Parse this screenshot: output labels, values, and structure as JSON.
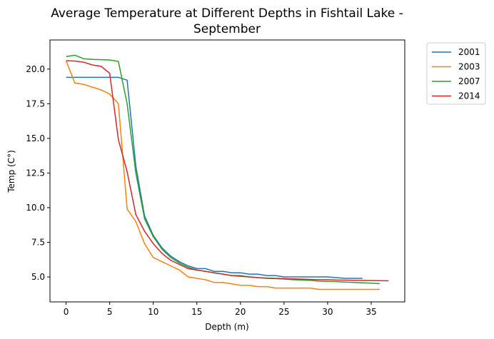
{
  "chart_data": {
    "type": "line",
    "title_line1": "Average Temperature at Different Depths in Fishtail Lake -",
    "title_line2": "September",
    "xlabel": "Depth (m)",
    "ylabel": "Temp (C°)",
    "xlim": [
      -1.85,
      38.85
    ],
    "ylim": [
      3.2,
      22.1
    ],
    "xticks": [
      0,
      5,
      10,
      15,
      20,
      25,
      30,
      35
    ],
    "yticks": [
      5.0,
      7.5,
      10.0,
      12.5,
      15.0,
      17.5,
      20.0
    ],
    "xtick_labels": [
      "0",
      "5",
      "10",
      "15",
      "20",
      "25",
      "30",
      "35"
    ],
    "ytick_labels": [
      "5.0",
      "7.5",
      "10.0",
      "12.5",
      "15.0",
      "17.5",
      "20.0"
    ],
    "grid": false,
    "legend_position": "outside-top-right",
    "series": [
      {
        "name": "2001",
        "color": "#1f77b4",
        "x": [
          0,
          1,
          2,
          3,
          4,
          5,
          6,
          7,
          8,
          9,
          10,
          11,
          12,
          13,
          14,
          15,
          16,
          17,
          18,
          19,
          20,
          21,
          22,
          23,
          24,
          25,
          26,
          27,
          28,
          29,
          30,
          31,
          32,
          33,
          34
        ],
        "y": [
          19.4,
          19.4,
          19.4,
          19.4,
          19.4,
          19.4,
          19.4,
          19.2,
          13.0,
          9.4,
          8.0,
          7.1,
          6.5,
          6.1,
          5.8,
          5.6,
          5.6,
          5.4,
          5.4,
          5.3,
          5.3,
          5.2,
          5.2,
          5.1,
          5.1,
          5.0,
          5.0,
          5.0,
          5.0,
          5.0,
          5.0,
          4.95,
          4.9,
          4.9,
          4.9
        ]
      },
      {
        "name": "2003",
        "color": "#ff7f0e",
        "x": [
          0,
          1,
          2,
          3,
          4,
          5,
          6,
          7,
          8,
          9,
          10,
          11,
          12,
          13,
          14,
          15,
          16,
          17,
          18,
          19,
          20,
          21,
          22,
          23,
          24,
          25,
          26,
          27,
          28,
          29,
          30,
          31,
          32,
          33,
          34,
          35,
          36
        ],
        "y": [
          20.6,
          19.0,
          18.9,
          18.7,
          18.5,
          18.2,
          17.5,
          9.9,
          9.0,
          7.4,
          6.4,
          6.1,
          5.8,
          5.5,
          5.0,
          4.9,
          4.8,
          4.6,
          4.6,
          4.5,
          4.4,
          4.4,
          4.3,
          4.3,
          4.2,
          4.2,
          4.2,
          4.2,
          4.2,
          4.1,
          4.1,
          4.1,
          4.1,
          4.1,
          4.1,
          4.1,
          4.1
        ]
      },
      {
        "name": "2007",
        "color": "#2ca02c",
        "x": [
          0,
          1,
          2,
          3,
          4,
          5,
          6,
          7,
          8,
          9,
          10,
          11,
          12,
          13,
          14,
          15,
          16,
          17,
          18,
          19,
          20,
          21,
          22,
          23,
          24,
          25,
          26,
          27,
          28,
          29,
          30,
          31,
          32,
          33,
          34,
          35,
          36
        ],
        "y": [
          20.9,
          21.0,
          20.75,
          20.7,
          20.68,
          20.66,
          20.55,
          17.5,
          12.5,
          9.2,
          7.9,
          7.0,
          6.4,
          6.0,
          5.7,
          5.5,
          5.4,
          5.3,
          5.2,
          5.1,
          5.1,
          5.0,
          4.95,
          4.9,
          4.88,
          4.85,
          4.8,
          4.78,
          4.75,
          4.7,
          4.68,
          4.66,
          4.63,
          4.6,
          4.58,
          4.55,
          4.52
        ]
      },
      {
        "name": "2014",
        "color": "#d62728",
        "x": [
          0,
          1,
          2,
          3,
          4,
          5,
          6,
          7,
          8,
          9,
          10,
          11,
          12,
          13,
          14,
          15,
          16,
          17,
          18,
          19,
          20,
          21,
          22,
          23,
          24,
          25,
          26,
          27,
          28,
          29,
          30,
          31,
          32,
          33,
          34,
          35,
          36,
          37
        ],
        "y": [
          20.6,
          20.58,
          20.5,
          20.3,
          20.2,
          19.7,
          14.9,
          12.6,
          9.5,
          8.3,
          7.4,
          6.7,
          6.2,
          5.9,
          5.6,
          5.5,
          5.4,
          5.3,
          5.2,
          5.1,
          5.05,
          5.0,
          4.95,
          4.92,
          4.9,
          4.88,
          4.86,
          4.84,
          4.82,
          4.8,
          4.8,
          4.78,
          4.77,
          4.76,
          4.75,
          4.74,
          4.73,
          4.72
        ]
      }
    ]
  }
}
